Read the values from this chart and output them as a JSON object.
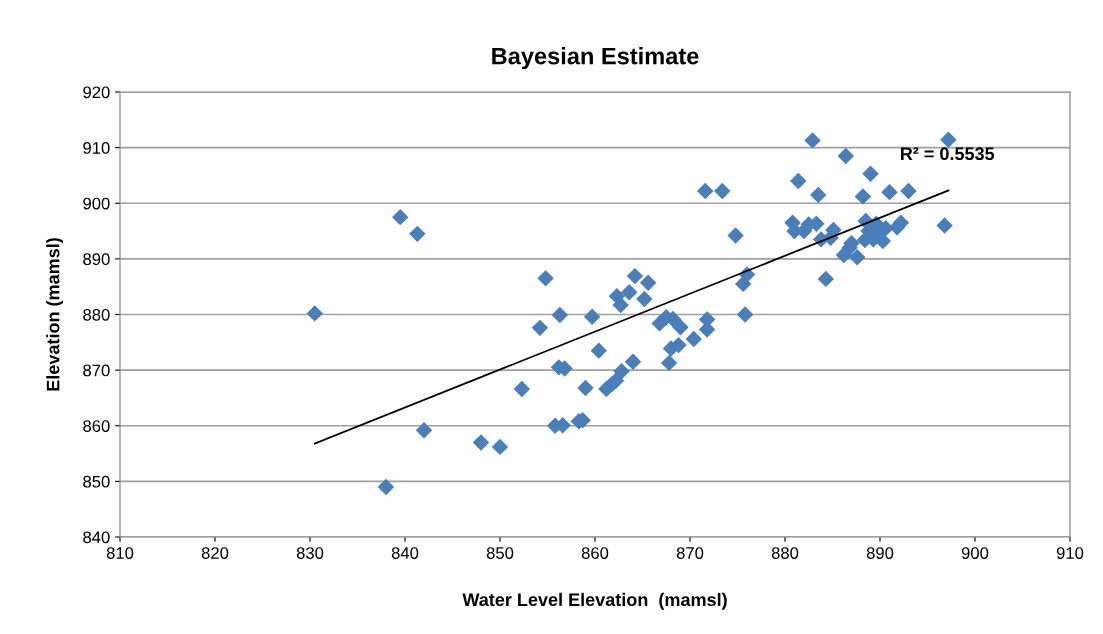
{
  "chart_data": {
    "type": "scatter",
    "title": "Bayesian Estimate",
    "xlabel": "Water Level Elevation  (mamsl)",
    "ylabel": "Elevation (mamsl)",
    "series": [
      {
        "color": "#4a7ebb",
        "marker": "diamond",
        "x": [
          830.5,
          838,
          839.5,
          841.3,
          842,
          848,
          850,
          852.3,
          854.2,
          854.8,
          855.8,
          856.2,
          856.3,
          856.6,
          856.8,
          858.3,
          858.7,
          859,
          859.7,
          860.4,
          861.2,
          861.8,
          862.2,
          862.3,
          862.7,
          862.8,
          863.6,
          864,
          864.2,
          865.2,
          865.6,
          866.8,
          867.5,
          867.8,
          868,
          868.2,
          868.8,
          869,
          870.4,
          871.6,
          871.8,
          871.8,
          873.4,
          874.8,
          875.6,
          875.8,
          876,
          880.8,
          881,
          881.4,
          882,
          882.5,
          882.9,
          883.3,
          883.5,
          883.8,
          884.3,
          884.8,
          885.1,
          886.2,
          886.4,
          886.8,
          887,
          887.6,
          888.2,
          888.4,
          888.5,
          888.8,
          889,
          889.3,
          889.6,
          889.9,
          890.3,
          890.6,
          891,
          891.8,
          892.2,
          893,
          896.8,
          897.2
        ],
        "values": [
          880.2,
          849,
          897.5,
          894.5,
          859.2,
          857,
          856.2,
          866.6,
          877.6,
          886.5,
          860,
          870.5,
          879.9,
          860.1,
          870.3,
          860.8,
          861,
          866.8,
          879.6,
          873.5,
          866.6,
          867.5,
          868.1,
          883.3,
          881.7,
          869.8,
          884,
          871.5,
          886.9,
          882.8,
          885.7,
          878.4,
          879.5,
          871.3,
          873.9,
          879.2,
          874.5,
          877.7,
          875.6,
          902.2,
          879.1,
          877.3,
          902.2,
          894.2,
          885.5,
          880,
          887.2,
          896.5,
          895,
          904,
          895,
          896.2,
          911.3,
          896.3,
          901.5,
          893.5,
          886.4,
          893.8,
          895.2,
          890.7,
          908.5,
          892,
          892.8,
          890.3,
          901.2,
          893.4,
          896.8,
          895,
          905.3,
          893.5,
          896.3,
          895,
          893.2,
          895.5,
          902,
          895.7,
          896.5,
          902.2,
          896,
          911.4
        ]
      },
      {
        "type": "line",
        "color": "#000000",
        "marker": "none",
        "line_style": "solid",
        "x": [
          830.5,
          897.2
        ],
        "values": [
          856.8,
          902.3
        ]
      }
    ],
    "annotations": [
      {
        "text": "R² = 0.5535",
        "x": 897.2,
        "y": 902.3
      }
    ],
    "xlim": [
      810,
      910
    ],
    "xticks": [
      810,
      820,
      830,
      840,
      850,
      860,
      870,
      880,
      890,
      900,
      910
    ],
    "ylim": [
      840,
      920
    ],
    "yticks": [
      840,
      850,
      860,
      870,
      880,
      890,
      900,
      910,
      920
    ],
    "grid": "y",
    "legend": false
  }
}
